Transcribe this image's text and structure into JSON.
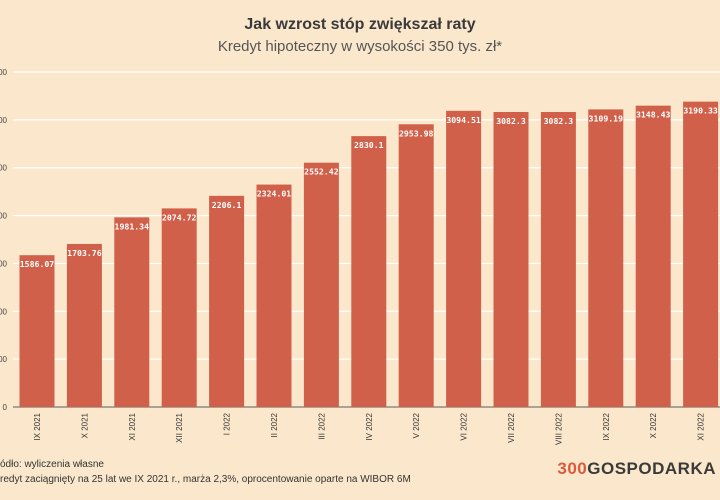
{
  "header": {
    "title": "Jak wzrost stóp zwiększał raty",
    "subtitle": "Kredyt hipoteczny w wysokości 350 tys. zł*"
  },
  "footer": {
    "source": "ódło: wyliczenia własne",
    "note": "redyt zaciągnięty na 25 lat we IX 2021 r., marża 2,3%, oprocentowanie oparte na WIBOR 6M"
  },
  "logo": {
    "digits": "300",
    "name": "GOSPODARKA"
  },
  "colors": {
    "background": "#fbe8cc",
    "bar": "#d0604a",
    "grid": "#ffffff"
  },
  "chart_data": {
    "type": "bar",
    "title": "Jak wzrost stóp zwiększał raty",
    "subtitle": "Kredyt hipoteczny w wysokości 350 tys. zł*",
    "categories": [
      "IX 2021",
      "X 2021",
      "XI 2021",
      "XII 2021",
      "I 2022",
      "II 2022",
      "III 2022",
      "IV 2022",
      "V 2022",
      "VI 2022",
      "VII 2022",
      "VIII 2022",
      "IX 2022",
      "X 2022",
      "XI 2022"
    ],
    "values": [
      1586.07,
      1703.76,
      1981.34,
      2074.72,
      2206.1,
      2324.01,
      2552.42,
      2830.1,
      2953.98,
      3094.51,
      3082.3,
      3082.3,
      3109.19,
      3148.43,
      3190.33
    ],
    "data_labels": [
      "1586.07",
      "1703.76",
      "1981.34",
      "2074.72",
      "2206.1",
      "2324.01",
      "2552.42",
      "2830.1",
      "2953.98",
      "3094.51",
      "3082.3",
      "3082.3",
      "3109.19",
      "3148.43",
      "3190.33"
    ],
    "ylim": [
      0,
      3500
    ],
    "yticks": [
      0,
      500,
      1000,
      1500,
      2000,
      2500,
      3000,
      3500
    ],
    "ytick_labels": [
      "0",
      "00",
      "00",
      "00",
      "00",
      "00",
      "00",
      "00"
    ],
    "grid": true,
    "legend": "none"
  }
}
